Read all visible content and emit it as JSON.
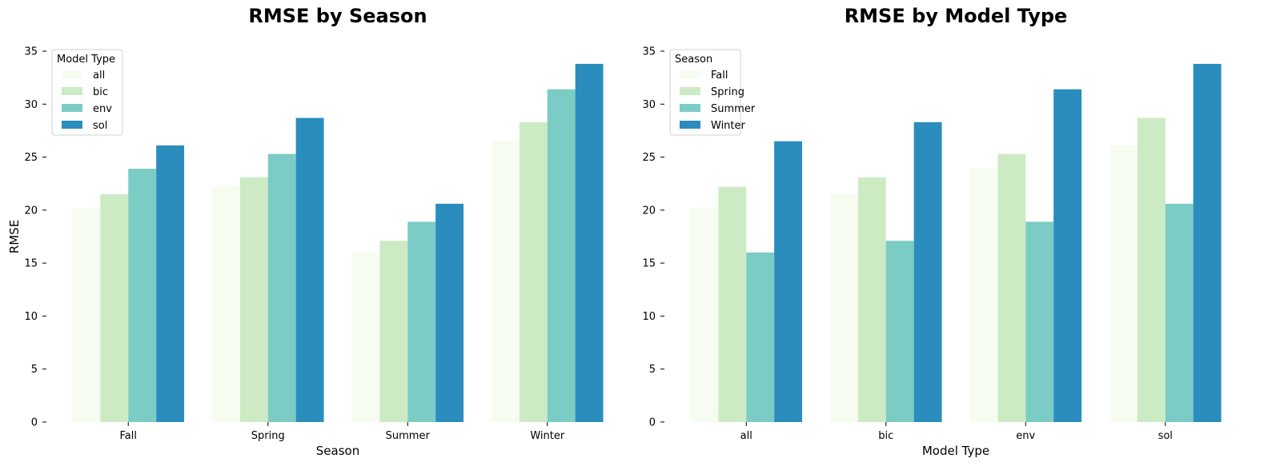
{
  "palette": [
    "#f7fcf0",
    "#ccebc5",
    "#7bccc4",
    "#2b8cbe"
  ],
  "chart_data": [
    {
      "type": "bar",
      "title": "RMSE by Season",
      "xlabel": "Season",
      "ylabel": "RMSE",
      "ylim": [
        0,
        35
      ],
      "yticks": [
        "0",
        "5",
        "10",
        "15",
        "20",
        "25",
        "30",
        "35"
      ],
      "categories": [
        "Fall",
        "Spring",
        "Summer",
        "Winter"
      ],
      "legend": {
        "title": "Model Type",
        "placement": "top-left"
      },
      "grid": false,
      "series": [
        {
          "name": "all",
          "values": [
            20.2,
            22.2,
            16.0,
            26.5
          ]
        },
        {
          "name": "bic",
          "values": [
            21.5,
            23.1,
            17.1,
            28.3
          ]
        },
        {
          "name": "env",
          "values": [
            23.9,
            25.3,
            18.9,
            31.4
          ]
        },
        {
          "name": "sol",
          "values": [
            26.1,
            28.7,
            20.6,
            33.8
          ]
        }
      ]
    },
    {
      "type": "bar",
      "title": "RMSE by Model Type",
      "xlabel": "Model Type",
      "ylabel": "",
      "ylim": [
        0,
        35
      ],
      "yticks": [
        "0",
        "5",
        "10",
        "15",
        "20",
        "25",
        "30",
        "35"
      ],
      "categories": [
        "all",
        "bic",
        "env",
        "sol"
      ],
      "legend": {
        "title": "Season",
        "placement": "top-left"
      },
      "grid": false,
      "series": [
        {
          "name": "Fall",
          "values": [
            20.2,
            21.5,
            23.9,
            26.1
          ]
        },
        {
          "name": "Spring",
          "values": [
            22.2,
            23.1,
            25.3,
            28.7
          ]
        },
        {
          "name": "Summer",
          "values": [
            16.0,
            17.1,
            18.9,
            20.6
          ]
        },
        {
          "name": "Winter",
          "values": [
            26.5,
            28.3,
            31.4,
            33.8
          ]
        }
      ]
    }
  ]
}
